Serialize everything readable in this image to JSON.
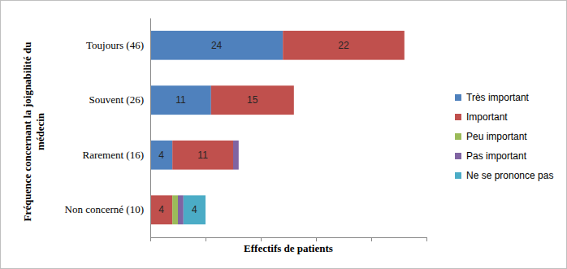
{
  "chart_data": {
    "type": "bar",
    "orientation": "horizontal",
    "stacked": true,
    "data_labels": true,
    "tick_labels": "y",
    "grid": false,
    "legend": "right",
    "x_label": "Effectifs de patients",
    "y_label": "Fréquence concernant la joignabilité du médecin",
    "categories": [
      "Toujours (46)",
      "Souvent (26)",
      "Rarement (16)",
      "Non concerné (10)"
    ],
    "xlim": [
      0,
      50
    ],
    "xticks": [
      0,
      10,
      20,
      30,
      40,
      50
    ],
    "series": [
      {
        "name": "Très important",
        "color": "#4f81bd",
        "values": [
          24,
          11,
          4,
          0
        ]
      },
      {
        "name": "Important",
        "color": "#c0504d",
        "values": [
          22,
          15,
          11,
          4
        ]
      },
      {
        "name": "Peu important",
        "color": "#9bbb59",
        "values": [
          0,
          0,
          0,
          1
        ]
      },
      {
        "name": "Pas important",
        "color": "#8064a2",
        "values": [
          0,
          0,
          1,
          1
        ]
      },
      {
        "name": "Ne se prononce pas",
        "color": "#4bacc6",
        "values": [
          0,
          0,
          0,
          4
        ]
      }
    ]
  }
}
